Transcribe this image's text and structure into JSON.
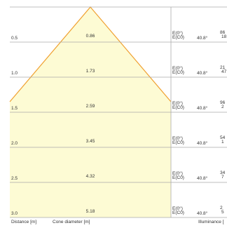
{
  "rows": [
    {
      "distance": "0.5",
      "diameter": "0.86",
      "label_a": "E(0°)",
      "label_b": "E(C0)",
      "angle": "40.8°",
      "value_a": "86",
      "value_b": "18"
    },
    {
      "distance": "1.0",
      "diameter": "1.73",
      "label_a": "E(0°)",
      "label_b": "E(C0)",
      "angle": "40.8°",
      "value_a": "21",
      "value_b": "47"
    },
    {
      "distance": "1.5",
      "diameter": "2.59",
      "label_a": "E(0°)",
      "label_b": "E(C0)",
      "angle": "40.8°",
      "value_a": "96",
      "value_b": "2"
    },
    {
      "distance": "2.0",
      "diameter": "3.45",
      "label_a": "E(0°)",
      "label_b": "E(C0)",
      "angle": "40.8°",
      "value_a": "54",
      "value_b": "1"
    },
    {
      "distance": "2.5",
      "diameter": "4.32",
      "label_a": "E(0°)",
      "label_b": "E(C0)",
      "angle": "40.8°",
      "value_a": "34",
      "value_b": "7"
    },
    {
      "distance": "3.0",
      "diameter": "5.18",
      "label_a": "E(0°)",
      "label_b": "E(C0)",
      "angle": "40.8°",
      "value_a": "2",
      "value_b": "5"
    }
  ],
  "footer": {
    "distance": "Distance [m]",
    "diameter": "Cone diameter [m]",
    "illuminance": "Illuminance ["
  }
}
